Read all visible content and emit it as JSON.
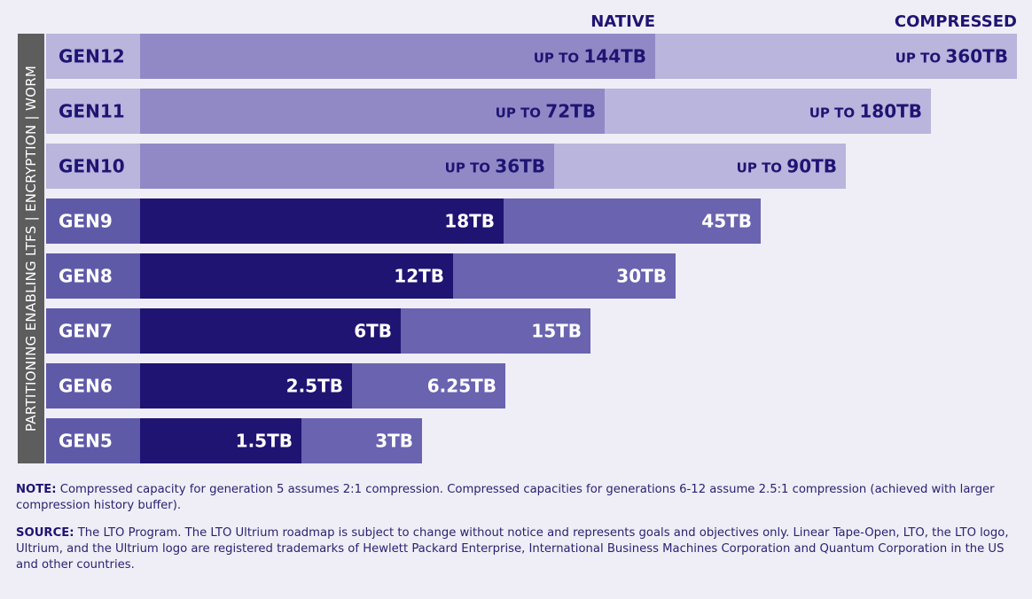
{
  "chart_data": {
    "type": "bar",
    "orientation": "horizontal",
    "stacked_overlay": true,
    "categories": [
      "GEN12",
      "GEN11",
      "GEN10",
      "GEN9",
      "GEN8",
      "GEN7",
      "GEN6",
      "GEN5"
    ],
    "series": [
      {
        "name": "NATIVE",
        "values": [
          144,
          72,
          36,
          18,
          12,
          6,
          2.5,
          1.5
        ],
        "labels": [
          {
            "prefix": "UP TO",
            "value": "144TB"
          },
          {
            "prefix": "UP TO",
            "value": "72TB"
          },
          {
            "prefix": "UP TO",
            "value": "36TB"
          },
          {
            "prefix": "",
            "value": "18TB"
          },
          {
            "prefix": "",
            "value": "12TB"
          },
          {
            "prefix": "",
            "value": "6TB"
          },
          {
            "prefix": "",
            "value": "2.5TB"
          },
          {
            "prefix": "",
            "value": "1.5TB"
          }
        ]
      },
      {
        "name": "COMPRESSED",
        "values": [
          360,
          180,
          90,
          45,
          30,
          15,
          6.25,
          3
        ],
        "labels": [
          {
            "prefix": "UP TO",
            "value": "360TB"
          },
          {
            "prefix": "UP TO",
            "value": "180TB"
          },
          {
            "prefix": "UP TO",
            "value": "90TB"
          },
          {
            "prefix": "",
            "value": "45TB"
          },
          {
            "prefix": "",
            "value": "30TB"
          },
          {
            "prefix": "",
            "value": "15TB"
          },
          {
            "prefix": "",
            "value": "6.25TB"
          },
          {
            "prefix": "",
            "value": "3TB"
          }
        ]
      }
    ],
    "future_generations": [
      "GEN12",
      "GEN11",
      "GEN10"
    ],
    "side_label": "PARTITIONING ENABLING LTFS | ENCRYPTION | WORM",
    "legend_placement": "top-right",
    "grid": false
  },
  "colors": {
    "background": "#efeef6",
    "header_text": "#1f1472",
    "side_bar": "#5d5d5d",
    "current_gen_bg": "#5f5aa8",
    "current_native": "#1f1472",
    "current_compressed": "#6a63b0",
    "current_text": "#ffffff",
    "future_gen_bg": "#b9b5dd",
    "future_native": "#9089c6",
    "future_compressed": "#b9b5dd",
    "future_text": "#1f1472"
  },
  "notes": {
    "note_label": "NOTE:",
    "note_text": "Compressed capacity for generation 5 assumes 2:1 compression. Compressed capacities for generations 6-12 assume 2.5:1 compression (achieved with larger compression history buffer).",
    "source_label": "SOURCE:",
    "source_text": "The LTO Program. The LTO Ultrium roadmap is subject to change without notice and represents goals and objectives only. Linear Tape-Open, LTO, the LTO logo, Ultrium, and the Ultrium logo are registered trademarks of Hewlett Packard Enterprise, International Business Machines Corporation and Quantum Corporation in the US and other countries."
  }
}
